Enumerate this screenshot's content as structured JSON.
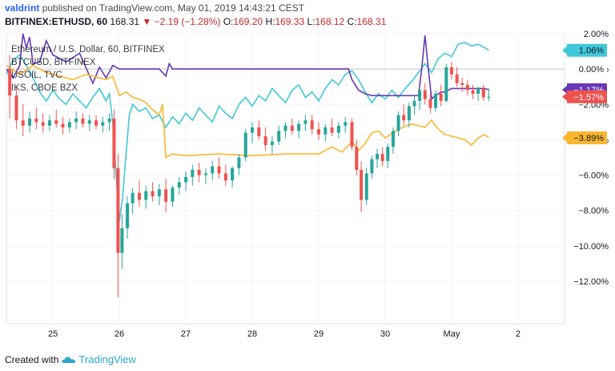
{
  "header": {
    "author": "valdrint",
    "published_text": "published on TradingView.com, May 01, 2019 14:43:21 CEST"
  },
  "symbol_bar": {
    "symbol": "BITFINEX:ETHUSD, 60",
    "last": "168.31",
    "change_arrow": "▼",
    "change": "−2.19 (−1.28%)",
    "open_label": "O:",
    "open": "169.20",
    "high_label": "H:",
    "high": "169.33",
    "low_label": "L:",
    "low": "168.12",
    "close_label": "C:",
    "close": "168.31"
  },
  "footer": {
    "created_with": "Created with",
    "brand": "TradingView",
    "icon": "tradingview-cloud-icon"
  },
  "chart_data": {
    "type": "line",
    "title": "Ethereum / U.S. Dollar, 60, BITFINEX",
    "xlabel": "",
    "ylabel": "",
    "x_ticks": [
      "25",
      "26",
      "27",
      "28",
      "29",
      "30",
      "May",
      "2"
    ],
    "y_ticks": [
      "2.00%",
      "0.00%",
      "−2.00%",
      "−4.00%",
      "−6.00%",
      "−8.00%",
      "−10.00%",
      "−12.00%"
    ],
    "ylim": [
      -14.4,
      2.0
    ],
    "xlim": [
      24.3,
      32.7
    ],
    "grid": true,
    "legend_position": "top-left",
    "colors": {
      "up": "#26a69a",
      "down": "#ef5350",
      "cyan": "#40c8d8",
      "purple": "#6738b8",
      "orange": "#fbb62e",
      "baseline": "#c8c8c8"
    },
    "candles": [
      {
        "t": 24.35,
        "o": 0.0,
        "h": 0.8,
        "l": -2.8,
        "c": -1.5
      },
      {
        "t": 24.45,
        "o": -1.5,
        "h": -1.0,
        "l": -3.4,
        "c": -2.9
      },
      {
        "t": 24.55,
        "o": -2.9,
        "h": -2.0,
        "l": -3.8,
        "c": -3.2
      },
      {
        "t": 24.65,
        "o": -3.2,
        "h": -2.4,
        "l": -3.6,
        "c": -2.8
      },
      {
        "t": 24.75,
        "o": -2.8,
        "h": -2.2,
        "l": -3.4,
        "c": -3.0
      },
      {
        "t": 24.85,
        "o": -3.0,
        "h": -2.5,
        "l": -3.6,
        "c": -3.2
      },
      {
        "t": 24.95,
        "o": -3.2,
        "h": -2.6,
        "l": -3.5,
        "c": -2.9
      },
      {
        "t": 25.05,
        "o": -2.9,
        "h": -2.3,
        "l": -3.3,
        "c": -3.1
      },
      {
        "t": 25.15,
        "o": -3.1,
        "h": -2.7,
        "l": -3.7,
        "c": -3.3
      },
      {
        "t": 25.25,
        "o": -3.3,
        "h": -2.8,
        "l": -3.6,
        "c": -3.0
      },
      {
        "t": 25.35,
        "o": -3.0,
        "h": -2.4,
        "l": -3.4,
        "c": -2.8
      },
      {
        "t": 25.45,
        "o": -2.8,
        "h": -2.5,
        "l": -3.3,
        "c": -3.1
      },
      {
        "t": 25.55,
        "o": -3.1,
        "h": -2.6,
        "l": -3.5,
        "c": -2.9
      },
      {
        "t": 25.65,
        "o": -2.9,
        "h": -2.6,
        "l": -3.4,
        "c": -3.2
      },
      {
        "t": 25.75,
        "o": -3.2,
        "h": -2.7,
        "l": -3.6,
        "c": -3.0
      },
      {
        "t": 25.85,
        "o": -3.0,
        "h": -2.5,
        "l": -3.5,
        "c": -2.8
      },
      {
        "t": 25.92,
        "o": -2.8,
        "h": -2.3,
        "l": -6.2,
        "c": -5.6
      },
      {
        "t": 25.98,
        "o": -5.6,
        "h": -4.8,
        "l": -12.9,
        "c": -10.4
      },
      {
        "t": 26.04,
        "o": -10.4,
        "h": -8.2,
        "l": -11.3,
        "c": -9.0
      },
      {
        "t": 26.12,
        "o": -9.0,
        "h": -7.2,
        "l": -9.6,
        "c": -7.6
      },
      {
        "t": 26.2,
        "o": -7.6,
        "h": -6.7,
        "l": -8.2,
        "c": -7.0
      },
      {
        "t": 26.3,
        "o": -7.0,
        "h": -6.3,
        "l": -7.8,
        "c": -7.4
      },
      {
        "t": 26.4,
        "o": -7.4,
        "h": -6.6,
        "l": -7.9,
        "c": -6.9
      },
      {
        "t": 26.5,
        "o": -6.9,
        "h": -6.4,
        "l": -7.5,
        "c": -7.2
      },
      {
        "t": 26.6,
        "o": -7.2,
        "h": -6.5,
        "l": -7.7,
        "c": -6.8
      },
      {
        "t": 26.7,
        "o": -6.8,
        "h": -6.2,
        "l": -8.1,
        "c": -7.5
      },
      {
        "t": 26.8,
        "o": -7.5,
        "h": -6.6,
        "l": -7.8,
        "c": -6.7
      },
      {
        "t": 26.9,
        "o": -6.7,
        "h": -6.1,
        "l": -7.1,
        "c": -6.4
      },
      {
        "t": 27.0,
        "o": -6.4,
        "h": -5.8,
        "l": -6.9,
        "c": -6.1
      },
      {
        "t": 27.1,
        "o": -6.1,
        "h": -5.4,
        "l": -6.6,
        "c": -5.7
      },
      {
        "t": 27.2,
        "o": -5.7,
        "h": -5.3,
        "l": -6.4,
        "c": -6.0
      },
      {
        "t": 27.3,
        "o": -6.0,
        "h": -5.6,
        "l": -6.5,
        "c": -5.9
      },
      {
        "t": 27.4,
        "o": -5.9,
        "h": -5.2,
        "l": -6.3,
        "c": -5.5
      },
      {
        "t": 27.5,
        "o": -5.5,
        "h": -5.0,
        "l": -6.2,
        "c": -5.9
      },
      {
        "t": 27.6,
        "o": -5.9,
        "h": -5.4,
        "l": -6.6,
        "c": -6.3
      },
      {
        "t": 27.7,
        "o": -6.3,
        "h": -5.5,
        "l": -6.7,
        "c": -5.6
      },
      {
        "t": 27.8,
        "o": -5.6,
        "h": -4.8,
        "l": -6.0,
        "c": -5.0
      },
      {
        "t": 27.9,
        "o": -5.0,
        "h": -3.4,
        "l": -5.2,
        "c": -3.6
      },
      {
        "t": 28.0,
        "o": -3.6,
        "h": -3.0,
        "l": -4.2,
        "c": -3.3
      },
      {
        "t": 28.1,
        "o": -3.3,
        "h": -2.9,
        "l": -4.0,
        "c": -3.8
      },
      {
        "t": 28.2,
        "o": -3.8,
        "h": -3.3,
        "l": -4.6,
        "c": -4.3
      },
      {
        "t": 28.3,
        "o": -4.3,
        "h": -3.8,
        "l": -4.8,
        "c": -4.1
      },
      {
        "t": 28.4,
        "o": -4.1,
        "h": -3.2,
        "l": -4.3,
        "c": -3.5
      },
      {
        "t": 28.5,
        "o": -3.5,
        "h": -3.0,
        "l": -3.9,
        "c": -3.2
      },
      {
        "t": 28.6,
        "o": -3.2,
        "h": -2.8,
        "l": -3.7,
        "c": -3.5
      },
      {
        "t": 28.7,
        "o": -3.5,
        "h": -2.9,
        "l": -3.9,
        "c": -3.1
      },
      {
        "t": 28.8,
        "o": -3.1,
        "h": -2.6,
        "l": -3.5,
        "c": -2.9
      },
      {
        "t": 28.9,
        "o": -2.9,
        "h": -2.6,
        "l": -3.7,
        "c": -3.4
      },
      {
        "t": 29.0,
        "o": -3.4,
        "h": -3.0,
        "l": -4.0,
        "c": -3.7
      },
      {
        "t": 29.1,
        "o": -3.7,
        "h": -3.1,
        "l": -4.1,
        "c": -3.3
      },
      {
        "t": 29.2,
        "o": -3.3,
        "h": -2.8,
        "l": -3.8,
        "c": -3.6
      },
      {
        "t": 29.3,
        "o": -3.6,
        "h": -3.0,
        "l": -3.9,
        "c": -3.2
      },
      {
        "t": 29.4,
        "o": -3.2,
        "h": -2.7,
        "l": -3.6,
        "c": -3.0
      },
      {
        "t": 29.5,
        "o": -3.0,
        "h": -2.8,
        "l": -4.6,
        "c": -4.4
      },
      {
        "t": 29.57,
        "o": -4.4,
        "h": -4.0,
        "l": -6.0,
        "c": -5.7
      },
      {
        "t": 29.64,
        "o": -5.7,
        "h": -5.2,
        "l": -8.1,
        "c": -7.4
      },
      {
        "t": 29.72,
        "o": -7.4,
        "h": -5.6,
        "l": -7.7,
        "c": -5.9
      },
      {
        "t": 29.8,
        "o": -5.9,
        "h": -4.9,
        "l": -6.2,
        "c": -5.1
      },
      {
        "t": 29.88,
        "o": -5.1,
        "h": -4.5,
        "l": -5.6,
        "c": -4.8
      },
      {
        "t": 29.96,
        "o": -4.8,
        "h": -4.4,
        "l": -5.5,
        "c": -5.2
      },
      {
        "t": 30.04,
        "o": -5.2,
        "h": -4.2,
        "l": -5.6,
        "c": -4.4
      },
      {
        "t": 30.12,
        "o": -4.4,
        "h": -3.3,
        "l": -4.8,
        "c": -3.5
      },
      {
        "t": 30.2,
        "o": -3.5,
        "h": -2.4,
        "l": -3.8,
        "c": -2.6
      },
      {
        "t": 30.28,
        "o": -2.6,
        "h": -2.0,
        "l": -3.2,
        "c": -2.9
      },
      {
        "t": 30.36,
        "o": -2.9,
        "h": -1.9,
        "l": -3.3,
        "c": -2.1
      },
      {
        "t": 30.44,
        "o": -2.1,
        "h": -1.5,
        "l": -2.6,
        "c": -1.8
      },
      {
        "t": 30.52,
        "o": -1.8,
        "h": -1.0,
        "l": -2.3,
        "c": -1.2
      },
      {
        "t": 30.6,
        "o": -1.2,
        "h": -0.8,
        "l": -2.0,
        "c": -1.7
      },
      {
        "t": 30.68,
        "o": -1.7,
        "h": -1.3,
        "l": -2.5,
        "c": -2.2
      },
      {
        "t": 30.76,
        "o": -2.2,
        "h": -1.2,
        "l": -2.4,
        "c": -1.4
      },
      {
        "t": 30.84,
        "o": -1.4,
        "h": -0.9,
        "l": -2.1,
        "c": -1.8
      },
      {
        "t": 30.92,
        "o": -1.8,
        "h": 0.3,
        "l": -1.9,
        "c": 0.1
      },
      {
        "t": 31.0,
        "o": 0.1,
        "h": 0.4,
        "l": -0.6,
        "c": -0.3
      },
      {
        "t": 31.08,
        "o": -0.3,
        "h": 0.1,
        "l": -1.0,
        "c": -0.8
      },
      {
        "t": 31.16,
        "o": -0.8,
        "h": -0.5,
        "l": -1.3,
        "c": -0.9
      },
      {
        "t": 31.24,
        "o": -0.9,
        "h": -0.6,
        "l": -1.5,
        "c": -1.2
      },
      {
        "t": 31.32,
        "o": -1.2,
        "h": -0.9,
        "l": -1.7,
        "c": -1.4
      },
      {
        "t": 31.4,
        "o": -1.4,
        "h": -1.0,
        "l": -1.8,
        "c": -1.1
      },
      {
        "t": 31.48,
        "o": -1.1,
        "h": -0.9,
        "l": -1.8,
        "c": -1.6
      },
      {
        "t": 31.56,
        "o": -1.6,
        "h": -1.1,
        "l": -1.8,
        "c": -1.57
      }
    ],
    "series": [
      {
        "name": "BTCUSD, BITFINEX",
        "color": "#40c8d8",
        "x": [
          24.3,
          24.4,
          24.5,
          24.6,
          24.7,
          24.8,
          24.9,
          25.0,
          25.1,
          25.2,
          25.3,
          25.4,
          25.5,
          25.6,
          25.7,
          25.8,
          25.85,
          25.9,
          25.95,
          26.0,
          26.05,
          26.1,
          26.15,
          26.2,
          26.3,
          26.4,
          26.5,
          26.6,
          26.7,
          26.8,
          26.9,
          27.0,
          27.1,
          27.2,
          27.3,
          27.4,
          27.5,
          27.6,
          27.7,
          27.8,
          27.9,
          28.0,
          28.1,
          28.2,
          28.3,
          28.4,
          28.5,
          28.6,
          28.7,
          28.8,
          28.9,
          29.0,
          29.1,
          29.2,
          29.3,
          29.4,
          29.5,
          29.6,
          29.7,
          29.8,
          29.9,
          30.0,
          30.1,
          30.2,
          30.3,
          30.4,
          30.5,
          30.6,
          30.7,
          30.8,
          30.9,
          31.0,
          31.1,
          31.2,
          31.3,
          31.4,
          31.5,
          31.56
        ],
        "values": [
          -0.3,
          0.5,
          0.8,
          0.2,
          -0.5,
          -1.3,
          -1.8,
          -1.2,
          -1.7,
          -2.0,
          -1.4,
          -1.8,
          -2.2,
          -1.6,
          -1.1,
          -1.8,
          -1.4,
          -3.0,
          -6.0,
          -8.6,
          -7.2,
          -4.8,
          -2.6,
          -2.0,
          -2.4,
          -2.2,
          -2.8,
          -2.6,
          -3.3,
          -2.7,
          -3.1,
          -2.5,
          -2.9,
          -2.2,
          -2.6,
          -3.0,
          -2.1,
          -2.5,
          -2.8,
          -2.0,
          -1.6,
          -2.1,
          -1.5,
          -1.8,
          -1.1,
          -1.5,
          -1.9,
          -1.2,
          -0.9,
          -1.6,
          -1.3,
          -1.8,
          -1.1,
          -0.6,
          -0.9,
          -0.3,
          -0.1,
          -0.6,
          -1.3,
          -1.9,
          -1.4,
          -1.7,
          -1.2,
          -1.6,
          -1.1,
          -0.7,
          -0.2,
          0.3,
          -0.2,
          0.6,
          0.9,
          0.7,
          1.4,
          1.5,
          1.3,
          1.4,
          1.2,
          1.06
        ]
      },
      {
        "name": "USOIL, TVC",
        "color": "#6738b8",
        "x": [
          24.3,
          24.4,
          24.5,
          24.55,
          24.6,
          24.65,
          24.7,
          24.8,
          24.9,
          25.0,
          25.2,
          25.4,
          25.6,
          25.7,
          25.8,
          25.9,
          26.0,
          26.2,
          26.4,
          26.6,
          26.7,
          26.75,
          26.8,
          27.0,
          27.5,
          28.0,
          28.5,
          29.0,
          29.3,
          29.45,
          29.5,
          29.6,
          29.7,
          29.8,
          29.9,
          30.0,
          30.2,
          30.4,
          30.5,
          30.55,
          30.6,
          30.65,
          30.7,
          30.75,
          30.8,
          30.85,
          30.9,
          31.0,
          31.2,
          31.4,
          31.5,
          31.56
        ],
        "values": [
          0.0,
          -0.5,
          0.2,
          2.0,
          1.2,
          1.8,
          0.3,
          0.4,
          1.6,
          0.8,
          0.4,
          0.9,
          -0.8,
          0.1,
          -0.5,
          0.2,
          0.0,
          0.0,
          0.0,
          0.0,
          -0.4,
          0.3,
          0.0,
          0.0,
          0.0,
          0.0,
          0.0,
          0.0,
          0.0,
          0.0,
          -0.6,
          -1.2,
          -1.4,
          -1.5,
          -1.5,
          -1.5,
          -1.5,
          -1.5,
          -1.5,
          0.0,
          1.9,
          0.0,
          -1.7,
          -1.5,
          -1.4,
          -1.3,
          -1.3,
          -1.1,
          -1.1,
          -1.1,
          -1.1,
          -1.17
        ]
      },
      {
        "name": "IKS, CBOE BZX",
        "color": "#fbb62e",
        "x": [
          24.3,
          24.5,
          24.7,
          24.9,
          25.1,
          25.3,
          25.5,
          25.7,
          25.8,
          25.9,
          26.0,
          26.1,
          26.2,
          26.3,
          26.4,
          26.5,
          26.6,
          26.65,
          26.7,
          26.8,
          27.0,
          27.5,
          28.0,
          28.5,
          29.0,
          29.2,
          29.35,
          29.45,
          29.5,
          29.6,
          29.7,
          29.8,
          29.9,
          30.0,
          30.2,
          30.4,
          30.6,
          30.7,
          30.8,
          30.9,
          31.0,
          31.1,
          31.2,
          31.3,
          31.4,
          31.5,
          31.56
        ],
        "values": [
          0.2,
          -0.3,
          0.2,
          -0.2,
          -0.4,
          -0.6,
          -0.3,
          -0.5,
          -0.6,
          -0.4,
          -1.5,
          -1.3,
          -1.6,
          -1.7,
          -1.9,
          -2.3,
          -2.6,
          -2.0,
          -5.0,
          -4.8,
          -4.9,
          -4.8,
          -4.9,
          -4.8,
          -4.8,
          -4.4,
          -4.7,
          -4.3,
          -4.1,
          -4.6,
          -4.2,
          -3.6,
          -3.5,
          -3.9,
          -3.4,
          -3.1,
          -3.3,
          -2.9,
          -3.4,
          -3.7,
          -3.8,
          -3.9,
          -4.0,
          -4.3,
          -3.9,
          -3.7,
          -3.89
        ]
      }
    ],
    "legend": [
      {
        "name": "Ethereum / U.S. Dollar, 60, BITFINEX",
        "color": "#131722"
      },
      {
        "name": "BTCUSD, BITFINEX",
        "color": "#40c8d8"
      },
      {
        "name": "USOIL, TVC",
        "color": "#6738b8"
      },
      {
        "name": "IKS, CBOE BZX",
        "color": "#fbb62e"
      }
    ],
    "price_labels": [
      {
        "text": "1.06%",
        "value": 1.06,
        "bg": "#40c8d8",
        "fg": "#131722"
      },
      {
        "text": "0.00%",
        "value": 0.0,
        "bg": "#ffffff",
        "fg": "#131722"
      },
      {
        "text": "−1.17%",
        "value": -1.17,
        "bg": "#6738b8",
        "fg": "#ffffff"
      },
      {
        "text": "−1.57%",
        "value": -1.57,
        "bg": "#ef5350",
        "fg": "#ffffff"
      },
      {
        "text": "−3.89%",
        "value": -3.89,
        "bg": "#fbb62e",
        "fg": "#131722"
      }
    ]
  }
}
